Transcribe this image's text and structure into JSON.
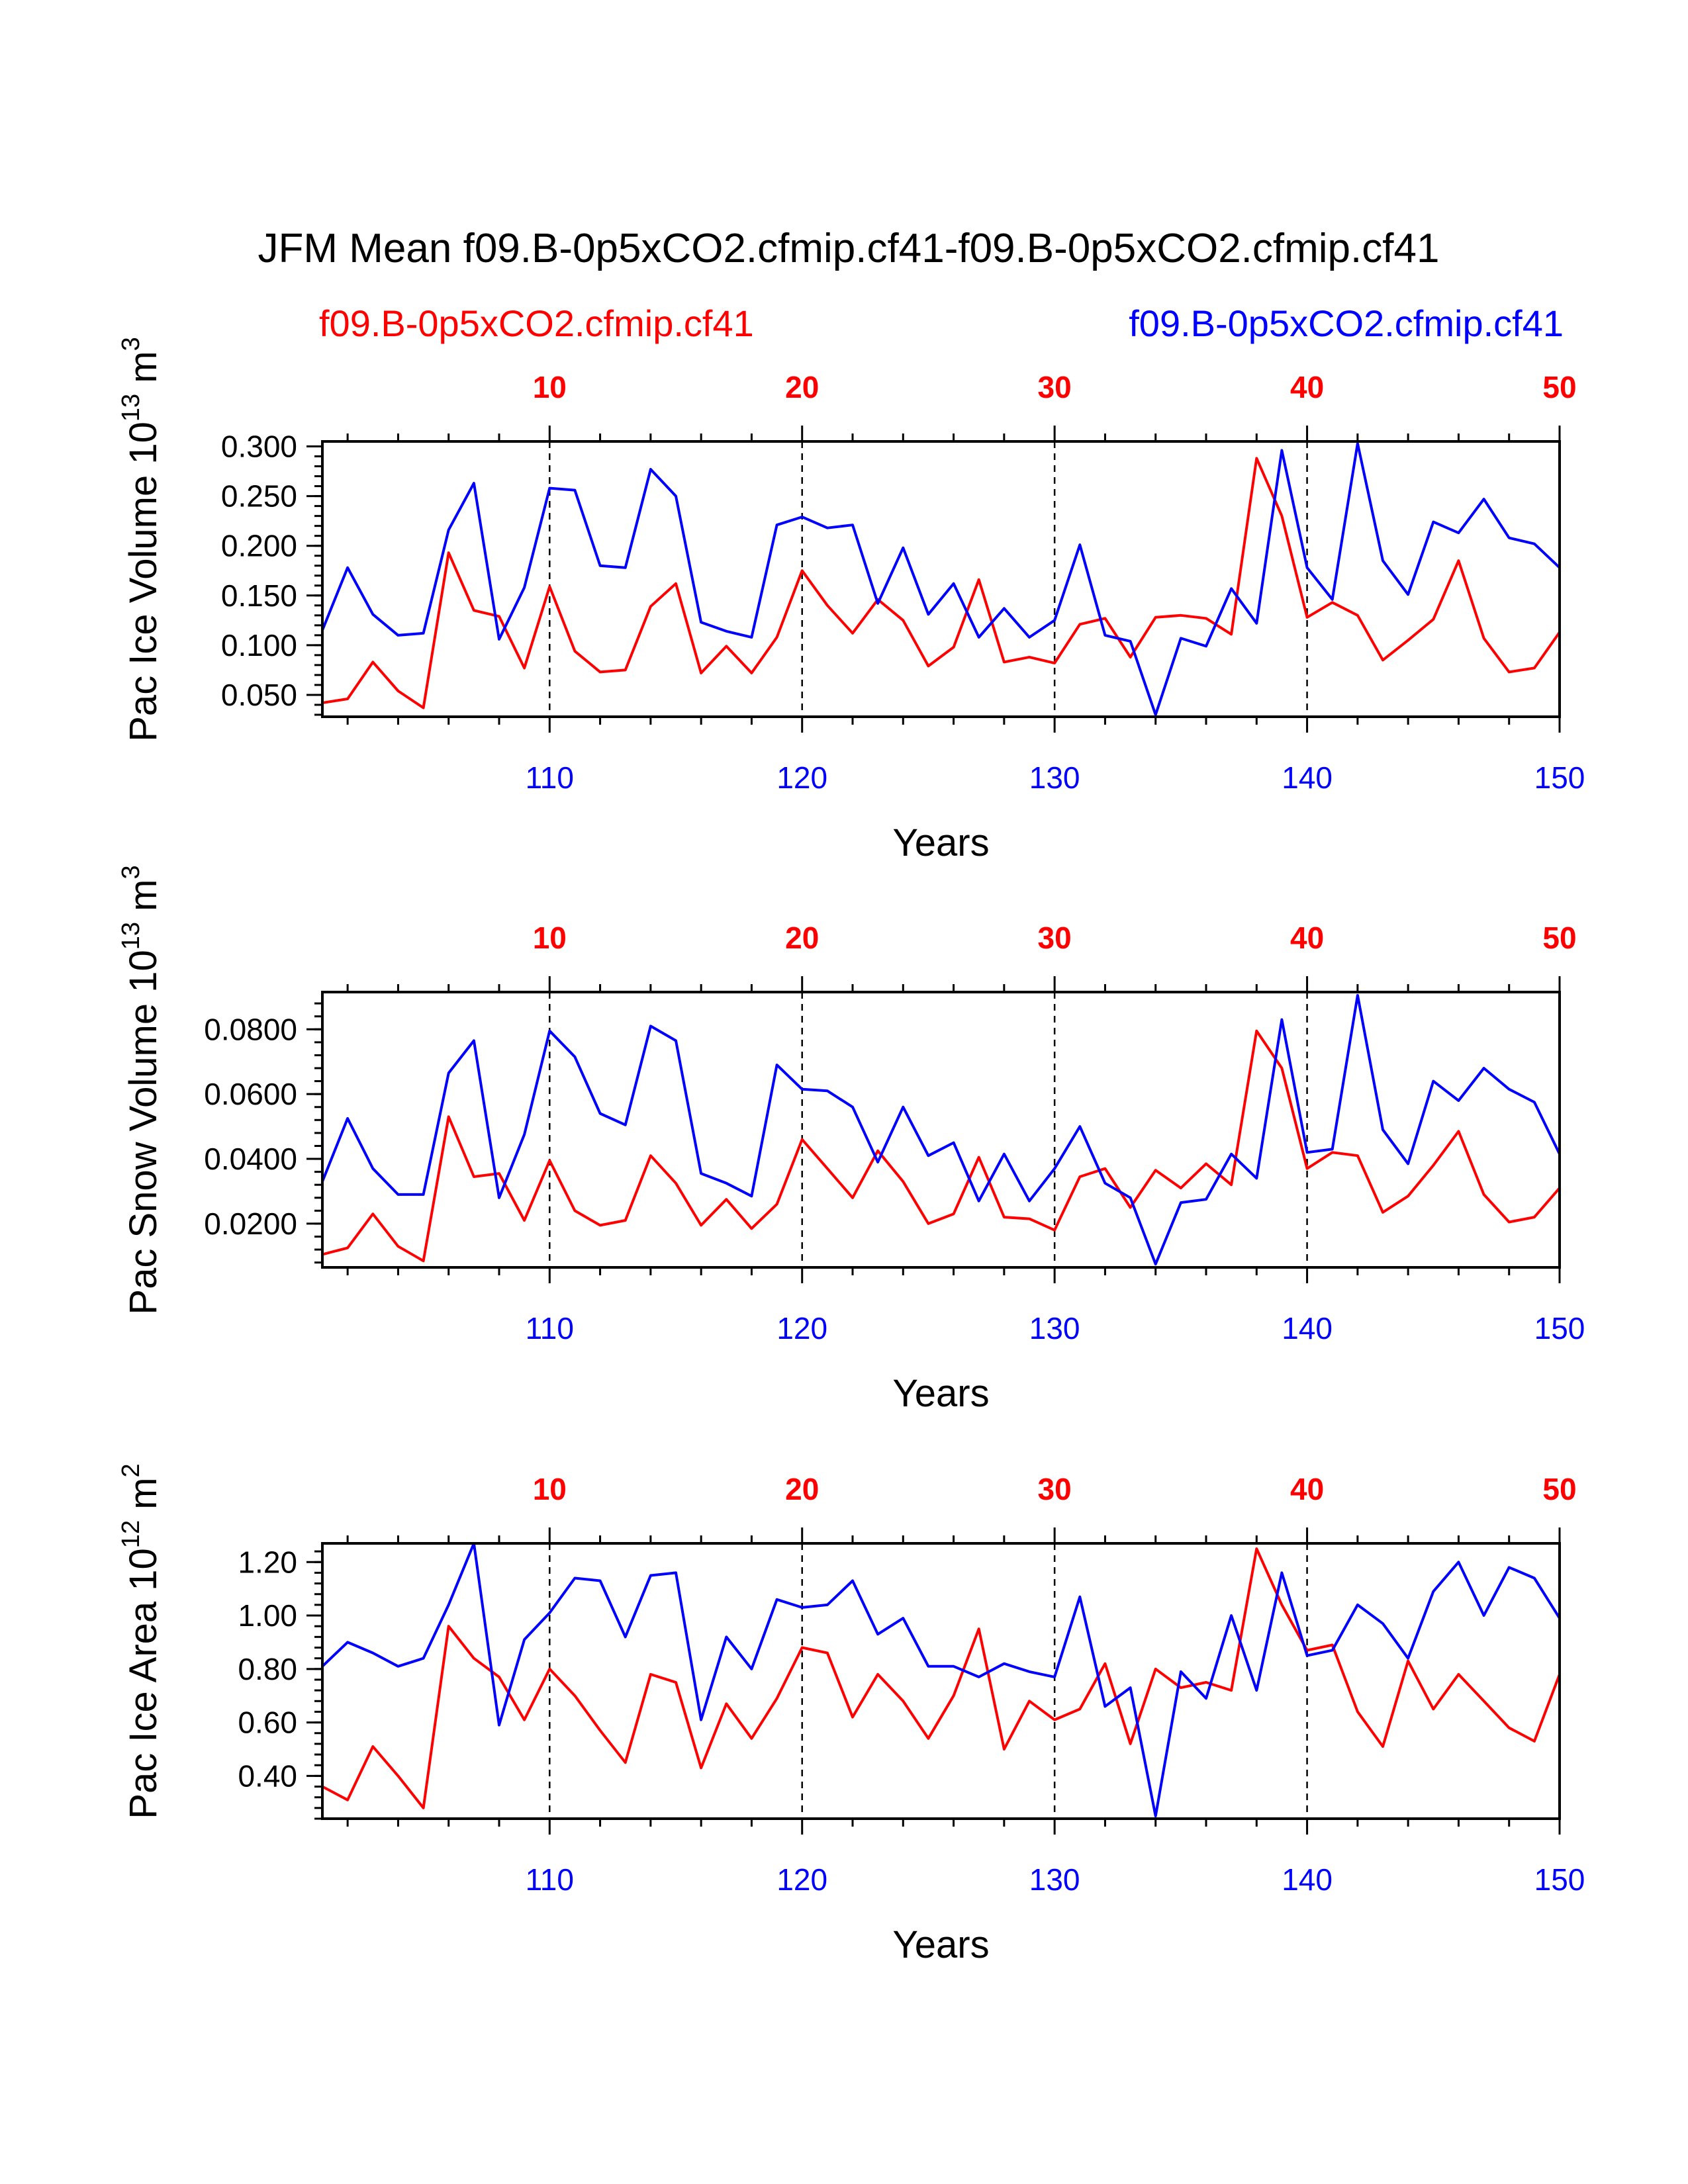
{
  "title": "JFM Mean f09.B-0p5xCO2.cfmip.cf41-f09.B-0p5xCO2.cfmip.cf41",
  "colors": {
    "series_a": "#ff0000",
    "series_b": "#0000ff",
    "axes": "#000000"
  },
  "chart_data": [
    {
      "type": "line",
      "panel": 1,
      "ylabel": "Pac Ice Volume",
      "ylabel_unit": "10",
      "ylabel_exp": "13",
      "ylabel_tail": " m",
      "ylabel_tail_exp": "3",
      "xlabel": "Years",
      "ylim": [
        0.028,
        0.305
      ],
      "yticks": [
        0.05,
        0.1,
        0.15,
        0.2,
        0.25,
        0.3
      ],
      "ytick_labels": [
        "0.050",
        "0.100",
        "0.150",
        "0.200",
        "0.250",
        "0.300"
      ],
      "yminor_step": 0.01,
      "x_bottom": {
        "lim": [
          101,
          150
        ],
        "ticks": [
          110,
          120,
          130,
          140,
          150
        ],
        "labels": [
          "110",
          "120",
          "130",
          "140",
          "150"
        ]
      },
      "x_top": {
        "lim": [
          1,
          50
        ],
        "ticks": [
          10,
          20,
          30,
          40,
          50
        ],
        "labels": [
          "10",
          "20",
          "30",
          "40",
          "50"
        ]
      },
      "ref_lines_x": [
        110,
        120,
        130,
        140
      ],
      "series": [
        {
          "name": "f09.B-0p5xCO2.cfmip.cf41",
          "axis": "top",
          "color": "#ff0000",
          "x": [
            1,
            2,
            3,
            4,
            5,
            6,
            7,
            8,
            9,
            10,
            11,
            12,
            13,
            14,
            15,
            16,
            17,
            18,
            19,
            20,
            21,
            22,
            23,
            24,
            25,
            26,
            27,
            28,
            29,
            30,
            31,
            32,
            33,
            34,
            35,
            36,
            37,
            38,
            39,
            40,
            41,
            42,
            43,
            44,
            45,
            46,
            47,
            48,
            49,
            50
          ],
          "values": [
            0.042,
            0.046,
            0.083,
            0.054,
            0.037,
            0.193,
            0.135,
            0.129,
            0.077,
            0.159,
            0.094,
            0.073,
            0.075,
            0.139,
            0.162,
            0.072,
            0.099,
            0.072,
            0.108,
            0.175,
            0.14,
            0.112,
            0.146,
            0.125,
            0.079,
            0.098,
            0.166,
            0.083,
            0.088,
            0.082,
            0.121,
            0.127,
            0.088,
            0.128,
            0.13,
            0.127,
            0.111,
            0.288,
            0.23,
            0.128,
            0.143,
            0.13,
            0.085,
            0.105,
            0.126,
            0.185,
            0.107,
            0.073,
            0.077,
            0.113
          ]
        },
        {
          "name": "f09.B-0p5xCO2.cfmip.cf41",
          "axis": "bottom",
          "color": "#0000ff",
          "x": [
            101,
            102,
            103,
            104,
            105,
            106,
            107,
            108,
            109,
            110,
            111,
            112,
            113,
            114,
            115,
            116,
            117,
            118,
            119,
            120,
            121,
            122,
            123,
            124,
            125,
            126,
            127,
            128,
            129,
            130,
            131,
            132,
            133,
            134,
            135,
            136,
            137,
            138,
            139,
            140,
            141,
            142,
            143,
            144,
            145,
            146,
            147,
            148,
            149,
            150
          ],
          "values": [
            0.115,
            0.178,
            0.131,
            0.11,
            0.112,
            0.216,
            0.263,
            0.106,
            0.158,
            0.258,
            0.256,
            0.18,
            0.178,
            0.277,
            0.25,
            0.123,
            0.114,
            0.108,
            0.221,
            0.229,
            0.218,
            0.221,
            0.142,
            0.198,
            0.131,
            0.162,
            0.108,
            0.137,
            0.108,
            0.125,
            0.201,
            0.11,
            0.104,
            0.03,
            0.107,
            0.099,
            0.157,
            0.122,
            0.296,
            0.178,
            0.146,
            0.303,
            0.185,
            0.151,
            0.224,
            0.213,
            0.247,
            0.208,
            0.202,
            0.178
          ]
        }
      ]
    },
    {
      "type": "line",
      "panel": 2,
      "ylabel": "Pac Snow Volume",
      "ylabel_unit": "10",
      "ylabel_exp": "13",
      "ylabel_tail": " m",
      "ylabel_tail_exp": "3",
      "xlabel": "Years",
      "ylim": [
        0.0065,
        0.0915
      ],
      "yticks": [
        0.02,
        0.04,
        0.06,
        0.08
      ],
      "ytick_labels": [
        "0.0200",
        "0.0400",
        "0.0600",
        "0.0800"
      ],
      "yminor_step": 0.004,
      "x_bottom": {
        "lim": [
          101,
          150
        ],
        "ticks": [
          110,
          120,
          130,
          140,
          150
        ],
        "labels": [
          "110",
          "120",
          "130",
          "140",
          "150"
        ]
      },
      "x_top": {
        "lim": [
          1,
          50
        ],
        "ticks": [
          10,
          20,
          30,
          40,
          50
        ],
        "labels": [
          "10",
          "20",
          "30",
          "40",
          "50"
        ]
      },
      "ref_lines_x": [
        110,
        120,
        130,
        140
      ],
      "series": [
        {
          "name": "f09.B-0p5xCO2.cfmip.cf41",
          "axis": "top",
          "color": "#ff0000",
          "x": [
            1,
            2,
            3,
            4,
            5,
            6,
            7,
            8,
            9,
            10,
            11,
            12,
            13,
            14,
            15,
            16,
            17,
            18,
            19,
            20,
            21,
            22,
            23,
            24,
            25,
            26,
            27,
            28,
            29,
            30,
            31,
            32,
            33,
            34,
            35,
            36,
            37,
            38,
            39,
            40,
            41,
            42,
            43,
            44,
            45,
            46,
            47,
            48,
            49,
            50
          ],
          "values": [
            0.0105,
            0.0125,
            0.023,
            0.013,
            0.0085,
            0.053,
            0.0345,
            0.0355,
            0.021,
            0.0395,
            0.024,
            0.0195,
            0.021,
            0.041,
            0.0325,
            0.0195,
            0.0275,
            0.0185,
            0.026,
            0.046,
            0.037,
            0.028,
            0.0425,
            0.033,
            0.02,
            0.023,
            0.0405,
            0.022,
            0.0215,
            0.018,
            0.0345,
            0.037,
            0.025,
            0.0365,
            0.031,
            0.0385,
            0.032,
            0.0795,
            0.068,
            0.037,
            0.042,
            0.041,
            0.0235,
            0.0285,
            0.038,
            0.0485,
            0.029,
            0.0205,
            0.022,
            0.031
          ]
        },
        {
          "name": "f09.B-0p5xCO2.cfmip.cf41",
          "axis": "bottom",
          "color": "#0000ff",
          "x": [
            101,
            102,
            103,
            104,
            105,
            106,
            107,
            108,
            109,
            110,
            111,
            112,
            113,
            114,
            115,
            116,
            117,
            118,
            119,
            120,
            121,
            122,
            123,
            124,
            125,
            126,
            127,
            128,
            129,
            130,
            131,
            132,
            133,
            134,
            135,
            136,
            137,
            138,
            139,
            140,
            141,
            142,
            143,
            144,
            145,
            146,
            147,
            148,
            149,
            150
          ],
          "values": [
            0.033,
            0.0525,
            0.037,
            0.029,
            0.029,
            0.0665,
            0.0765,
            0.028,
            0.0475,
            0.0795,
            0.0715,
            0.054,
            0.0505,
            0.081,
            0.0765,
            0.0355,
            0.0325,
            0.0285,
            0.069,
            0.0615,
            0.061,
            0.056,
            0.039,
            0.056,
            0.041,
            0.045,
            0.027,
            0.0415,
            0.027,
            0.037,
            0.05,
            0.0325,
            0.028,
            0.0075,
            0.0265,
            0.0275,
            0.0415,
            0.034,
            0.083,
            0.042,
            0.043,
            0.0905,
            0.049,
            0.0385,
            0.064,
            0.058,
            0.068,
            0.0615,
            0.0575,
            0.0415
          ]
        }
      ]
    },
    {
      "type": "line",
      "panel": 3,
      "ylabel": "Pac Ice Area",
      "ylabel_unit": "10",
      "ylabel_exp": "12",
      "ylabel_tail": " m",
      "ylabel_tail_exp": "2",
      "xlabel": "Years",
      "ylim": [
        0.24,
        1.27
      ],
      "yticks": [
        0.4,
        0.6,
        0.8,
        1.0,
        1.2
      ],
      "ytick_labels": [
        "0.40",
        "0.60",
        "0.80",
        "1.00",
        "1.20"
      ],
      "yminor_step": 0.04,
      "x_bottom": {
        "lim": [
          101,
          150
        ],
        "ticks": [
          110,
          120,
          130,
          140,
          150
        ],
        "labels": [
          "110",
          "120",
          "130",
          "140",
          "150"
        ]
      },
      "x_top": {
        "lim": [
          1,
          50
        ],
        "ticks": [
          10,
          20,
          30,
          40,
          50
        ],
        "labels": [
          "10",
          "20",
          "30",
          "40",
          "50"
        ]
      },
      "ref_lines_x": [
        110,
        120,
        130,
        140
      ],
      "series": [
        {
          "name": "f09.B-0p5xCO2.cfmip.cf41",
          "axis": "top",
          "color": "#ff0000",
          "x": [
            1,
            2,
            3,
            4,
            5,
            6,
            7,
            8,
            9,
            10,
            11,
            12,
            13,
            14,
            15,
            16,
            17,
            18,
            19,
            20,
            21,
            22,
            23,
            24,
            25,
            26,
            27,
            28,
            29,
            30,
            31,
            32,
            33,
            34,
            35,
            36,
            37,
            38,
            39,
            40,
            41,
            42,
            43,
            44,
            45,
            46,
            47,
            48,
            49,
            50
          ],
          "values": [
            0.36,
            0.31,
            0.51,
            0.4,
            0.28,
            0.96,
            0.84,
            0.77,
            0.61,
            0.8,
            0.7,
            0.57,
            0.45,
            0.78,
            0.75,
            0.43,
            0.67,
            0.54,
            0.69,
            0.88,
            0.86,
            0.62,
            0.78,
            0.68,
            0.54,
            0.7,
            0.95,
            0.5,
            0.68,
            0.61,
            0.65,
            0.82,
            0.52,
            0.8,
            0.73,
            0.75,
            0.72,
            1.25,
            1.04,
            0.87,
            0.89,
            0.64,
            0.51,
            0.83,
            0.65,
            0.78,
            0.68,
            0.58,
            0.53,
            0.78
          ]
        },
        {
          "name": "f09.B-0p5xCO2.cfmip.cf41",
          "axis": "bottom",
          "color": "#0000ff",
          "x": [
            101,
            102,
            103,
            104,
            105,
            106,
            107,
            108,
            109,
            110,
            111,
            112,
            113,
            114,
            115,
            116,
            117,
            118,
            119,
            120,
            121,
            122,
            123,
            124,
            125,
            126,
            127,
            128,
            129,
            130,
            131,
            132,
            133,
            134,
            135,
            136,
            137,
            138,
            139,
            140,
            141,
            142,
            143,
            144,
            145,
            146,
            147,
            148,
            149,
            150
          ],
          "values": [
            0.81,
            0.9,
            0.86,
            0.81,
            0.84,
            1.04,
            1.27,
            0.59,
            0.91,
            1.01,
            1.14,
            1.13,
            0.92,
            1.15,
            1.16,
            0.61,
            0.92,
            0.8,
            1.06,
            1.03,
            1.04,
            1.13,
            0.93,
            0.99,
            0.81,
            0.81,
            0.77,
            0.82,
            0.79,
            0.77,
            1.07,
            0.66,
            0.73,
            0.25,
            0.79,
            0.69,
            1.0,
            0.72,
            1.16,
            0.85,
            0.87,
            1.04,
            0.97,
            0.84,
            1.09,
            1.2,
            1.0,
            1.18,
            1.14,
            0.99
          ]
        }
      ]
    }
  ]
}
